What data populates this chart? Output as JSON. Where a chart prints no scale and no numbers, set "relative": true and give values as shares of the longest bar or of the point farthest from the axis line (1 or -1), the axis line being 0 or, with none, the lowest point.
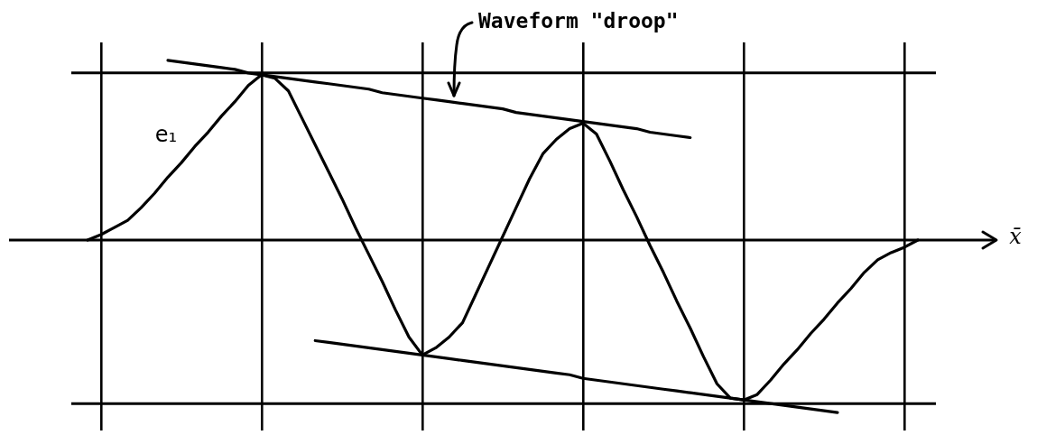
{
  "chart_data": {
    "type": "line",
    "relative": true,
    "grid": "x",
    "xlabel": "x̄",
    "annotations": [
      "Waveform \"droop\""
    ],
    "categories": [
      null,
      null,
      null,
      null,
      null,
      null,
      null,
      null,
      null,
      null,
      null,
      null,
      null,
      null,
      null,
      null,
      null,
      null,
      null,
      null,
      null,
      null,
      null,
      null,
      null,
      null,
      null,
      null,
      null,
      null,
      null,
      null,
      null,
      null,
      null,
      null,
      null,
      null,
      null,
      null,
      null,
      null,
      null,
      null,
      null,
      null,
      null,
      null,
      null,
      null,
      null,
      null,
      null,
      null,
      null,
      null,
      null,
      null,
      null,
      null,
      null,
      null,
      null
    ],
    "series": [
      {
        "name": "e₁",
        "color": "#000000",
        "values": [
          0,
          0.03,
          0.07,
          0.11,
          0.18,
          0.26,
          0.35,
          0.43,
          0.52,
          0.6,
          0.69,
          0.77,
          0.86,
          0.92,
          0.9,
          0.83,
          0.68,
          0.53,
          0.38,
          0.23,
          0.07,
          -0.08,
          -0.23,
          -0.39,
          -0.54,
          -0.64,
          -0.6,
          -0.54,
          -0.46,
          -0.3,
          -0.14,
          0.02,
          0.18,
          0.34,
          0.48,
          0.56,
          0.62,
          0.65,
          0.59,
          0.44,
          0.28,
          0.13,
          -0.03,
          -0.18,
          -0.34,
          -0.49,
          -0.65,
          -0.8,
          -0.88,
          -0.89,
          -0.86,
          -0.78,
          -0.69,
          -0.61,
          -0.52,
          -0.44,
          -0.35,
          -0.27,
          -0.18,
          -0.11,
          -0.07,
          -0.04,
          0
        ]
      },
      {
        "color": "#000000",
        "values": [
          null,
          null,
          null,
          null,
          null,
          null,
          1.0,
          0.99,
          0.98,
          0.97,
          0.96,
          0.95,
          0.93,
          0.92,
          0.91,
          0.9,
          0.89,
          0.88,
          0.87,
          0.86,
          0.85,
          0.84,
          0.82,
          0.81,
          0.8,
          0.79,
          0.78,
          0.77,
          0.76,
          0.75,
          0.74,
          0.73,
          0.71,
          0.7,
          0.69,
          0.68,
          0.67,
          0.66,
          0.65,
          0.64,
          0.63,
          0.62,
          0.6,
          0.59,
          0.58,
          0.57,
          null,
          null,
          null,
          null,
          null,
          null,
          null,
          null,
          null,
          null,
          null,
          null,
          null,
          null,
          null,
          null,
          null
        ]
      },
      {
        "color": "#000000",
        "values": [
          null,
          null,
          null,
          null,
          null,
          null,
          null,
          null,
          null,
          null,
          null,
          null,
          null,
          null,
          null,
          null,
          null,
          -0.56,
          -0.57,
          -0.58,
          -0.59,
          -0.6,
          -0.61,
          -0.62,
          -0.63,
          -0.64,
          -0.65,
          -0.66,
          -0.67,
          -0.68,
          -0.69,
          -0.7,
          -0.71,
          -0.72,
          -0.73,
          -0.74,
          -0.75,
          -0.77,
          -0.78,
          -0.79,
          -0.8,
          -0.81,
          -0.82,
          -0.83,
          -0.84,
          -0.85,
          -0.86,
          -0.87,
          -0.88,
          -0.89,
          -0.9,
          -0.91,
          -0.92,
          -0.93,
          -0.94,
          -0.95,
          -0.96,
          null,
          null,
          null,
          null,
          null,
          null
        ]
      }
    ],
    "ref_lines": [
      {
        "axis": "y",
        "value": 0.93,
        "color": "#000000"
      },
      {
        "axis": "y",
        "value": -0.91,
        "color": "#000000"
      }
    ]
  }
}
